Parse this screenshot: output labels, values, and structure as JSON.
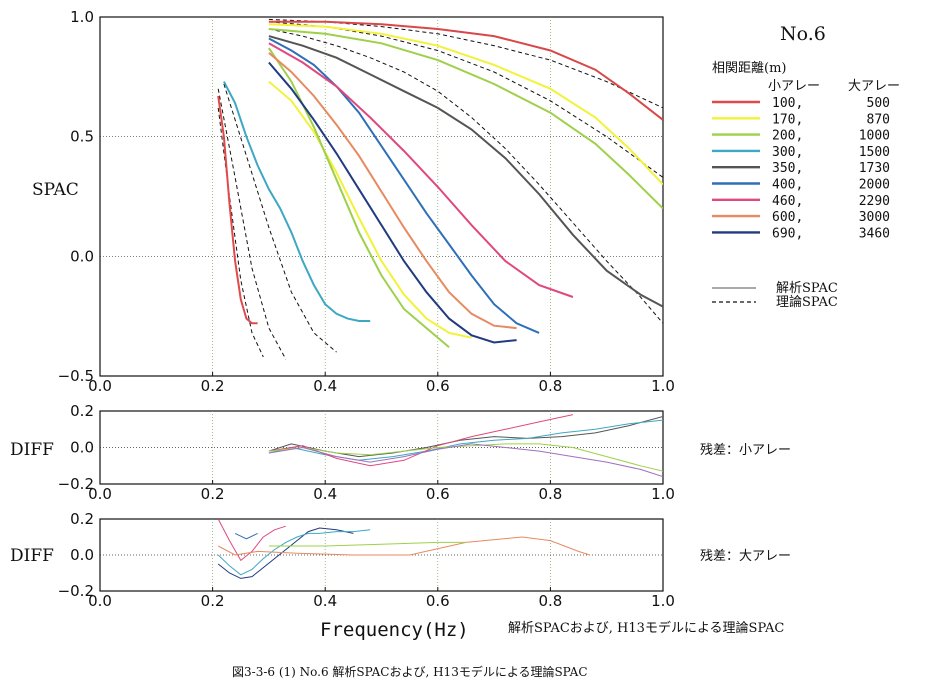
{
  "panel_title": "No.6",
  "main_caption": "解析SPACおよび, H13モデルによる理論SPAC",
  "figure_caption": "図3-3-6 (1) No.6 解析SPACおよび, H13モデルによる理論SPAC",
  "legend": {
    "title": "相関距離(m)",
    "small_header": "小アレー",
    "large_header": "大アレー",
    "entries": [
      {
        "small": "100,",
        "large": "500",
        "color": "#e04a4a"
      },
      {
        "small": "170,",
        "large": "870",
        "color": "#f2f23a"
      },
      {
        "small": "200,",
        "large": "1000",
        "color": "#9fd04a"
      },
      {
        "small": "300,",
        "large": "1500",
        "color": "#3ea7c4"
      },
      {
        "small": "350,",
        "large": "1730",
        "color": "#555555"
      },
      {
        "small": "400,",
        "large": "2000",
        "color": "#2e6fb8"
      },
      {
        "small": "460,",
        "large": "2290",
        "color": "#e0487f"
      },
      {
        "small": "600,",
        "large": "3000",
        "color": "#e88a60"
      },
      {
        "small": "690,",
        "large": "3460",
        "color": "#223a80"
      }
    ],
    "line_analysis": "解析SPAC",
    "line_theory": "理論SPAC"
  },
  "diff_small_label": "残差：小アレー",
  "diff_large_label": "残差：大アレー",
  "chart_data": [
    {
      "type": "line",
      "ylabel": "SPAC",
      "xlabel": "",
      "xlim": [
        0.0,
        1.0
      ],
      "ylim": [
        -0.5,
        1.0
      ],
      "xticks": [
        "0.0",
        "0.2",
        "0.4",
        "0.6",
        "0.8",
        "1.0"
      ],
      "yticks": [
        "1.0",
        "0.5",
        "0.0",
        "−0.5"
      ],
      "grid": true,
      "series": [
        {
          "name": "100",
          "color": "#e04a4a",
          "x": [
            0.21,
            0.22,
            0.23,
            0.24,
            0.25,
            0.26,
            0.27,
            0.28
          ],
          "y": [
            0.67,
            0.5,
            0.22,
            -0.02,
            -0.18,
            -0.26,
            -0.28,
            -0.28
          ]
        },
        {
          "name": "170",
          "color": "#f2f23a",
          "x": [
            0.3,
            0.34,
            0.38,
            0.42,
            0.46,
            0.5,
            0.54,
            0.58,
            0.62,
            0.66
          ],
          "y": [
            0.73,
            0.65,
            0.52,
            0.35,
            0.16,
            -0.02,
            -0.16,
            -0.26,
            -0.32,
            -0.34
          ]
        },
        {
          "name": "200",
          "color": "#9fd04a",
          "x": [
            0.3,
            0.34,
            0.38,
            0.42,
            0.46,
            0.5,
            0.54,
            0.58,
            0.62
          ],
          "y": [
            0.87,
            0.73,
            0.54,
            0.32,
            0.1,
            -0.08,
            -0.22,
            -0.3,
            -0.38
          ]
        },
        {
          "name": "300",
          "color": "#3ea7c4",
          "x": [
            0.22,
            0.24,
            0.26,
            0.28,
            0.3,
            0.32,
            0.34,
            0.36,
            0.38,
            0.4,
            0.42,
            0.44,
            0.46,
            0.48
          ],
          "y": [
            0.73,
            0.64,
            0.5,
            0.38,
            0.28,
            0.2,
            0.1,
            -0.02,
            -0.12,
            -0.2,
            -0.24,
            -0.26,
            -0.27,
            -0.27
          ]
        },
        {
          "name": "350",
          "color": "#555555",
          "x": [
            0.3,
            0.36,
            0.42,
            0.48,
            0.54,
            0.6,
            0.66,
            0.72,
            0.78,
            0.84,
            0.9,
            0.96,
            1.0
          ],
          "y": [
            0.92,
            0.88,
            0.83,
            0.76,
            0.69,
            0.62,
            0.53,
            0.41,
            0.26,
            0.09,
            -0.06,
            -0.16,
            -0.21
          ]
        },
        {
          "name": "400",
          "color": "#2e6fb8",
          "x": [
            0.3,
            0.34,
            0.38,
            0.42,
            0.46,
            0.5,
            0.54,
            0.58,
            0.62,
            0.66,
            0.7,
            0.74,
            0.78
          ],
          "y": [
            0.91,
            0.86,
            0.8,
            0.71,
            0.6,
            0.46,
            0.32,
            0.18,
            0.05,
            -0.08,
            -0.2,
            -0.28,
            -0.32
          ]
        },
        {
          "name": "460",
          "color": "#e0487f",
          "x": [
            0.3,
            0.36,
            0.42,
            0.48,
            0.54,
            0.6,
            0.66,
            0.72,
            0.78,
            0.84
          ],
          "y": [
            0.89,
            0.81,
            0.71,
            0.58,
            0.44,
            0.29,
            0.13,
            -0.02,
            -0.12,
            -0.17
          ]
        },
        {
          "name": "600",
          "color": "#e88a60",
          "x": [
            0.3,
            0.34,
            0.38,
            0.42,
            0.46,
            0.5,
            0.54,
            0.58,
            0.62,
            0.66,
            0.7,
            0.74
          ],
          "y": [
            0.85,
            0.77,
            0.67,
            0.55,
            0.42,
            0.27,
            0.12,
            -0.02,
            -0.15,
            -0.24,
            -0.29,
            -0.3
          ]
        },
        {
          "name": "690",
          "color": "#223a80",
          "x": [
            0.3,
            0.34,
            0.38,
            0.42,
            0.46,
            0.5,
            0.54,
            0.58,
            0.62,
            0.66,
            0.7,
            0.74
          ],
          "y": [
            0.81,
            0.7,
            0.57,
            0.43,
            0.28,
            0.13,
            -0.02,
            -0.15,
            -0.26,
            -0.33,
            -0.36,
            -0.35
          ]
        },
        {
          "name": "100-large",
          "color": "#d84848",
          "x": [
            0.3,
            0.4,
            0.5,
            0.6,
            0.7,
            0.8,
            0.88,
            0.94,
            1.0
          ],
          "y": [
            0.98,
            0.98,
            0.97,
            0.95,
            0.92,
            0.86,
            0.78,
            0.68,
            0.57
          ]
        },
        {
          "name": "170-large",
          "color": "#f2f23a",
          "x": [
            0.3,
            0.4,
            0.5,
            0.6,
            0.7,
            0.8,
            0.88,
            0.94,
            1.0
          ],
          "y": [
            0.97,
            0.96,
            0.93,
            0.88,
            0.8,
            0.7,
            0.58,
            0.45,
            0.3
          ]
        },
        {
          "name": "200-large",
          "color": "#9fd04a",
          "x": [
            0.3,
            0.4,
            0.5,
            0.6,
            0.7,
            0.8,
            0.88,
            0.94,
            1.0
          ],
          "y": [
            0.95,
            0.93,
            0.89,
            0.82,
            0.72,
            0.6,
            0.47,
            0.34,
            0.2
          ]
        }
      ],
      "theory_series": [
        {
          "x": [
            0.21,
            0.23,
            0.25,
            0.27,
            0.29
          ],
          "y": [
            0.62,
            0.25,
            -0.1,
            -0.32,
            -0.42
          ]
        },
        {
          "x": [
            0.21,
            0.24,
            0.27,
            0.3,
            0.33
          ],
          "y": [
            0.7,
            0.33,
            -0.05,
            -0.3,
            -0.43
          ]
        },
        {
          "x": [
            0.22,
            0.26,
            0.3,
            0.34,
            0.38,
            0.42
          ],
          "y": [
            0.72,
            0.42,
            0.12,
            -0.15,
            -0.32,
            -0.4
          ]
        },
        {
          "x": [
            0.3,
            0.36,
            0.42,
            0.48,
            0.54,
            0.6,
            0.66,
            0.72,
            0.78,
            0.84,
            0.9,
            0.96,
            1.0
          ],
          "y": [
            0.95,
            0.92,
            0.88,
            0.83,
            0.77,
            0.69,
            0.58,
            0.45,
            0.3,
            0.14,
            -0.02,
            -0.17,
            -0.28
          ]
        },
        {
          "x": [
            0.3,
            0.4,
            0.5,
            0.6,
            0.7,
            0.8,
            0.9,
            1.0
          ],
          "y": [
            0.99,
            0.98,
            0.96,
            0.93,
            0.88,
            0.82,
            0.73,
            0.62
          ]
        },
        {
          "x": [
            0.3,
            0.4,
            0.5,
            0.6,
            0.7,
            0.8,
            0.9,
            1.0
          ],
          "y": [
            0.98,
            0.96,
            0.92,
            0.86,
            0.77,
            0.65,
            0.5,
            0.33
          ]
        }
      ]
    },
    {
      "type": "line",
      "ylabel": "DIFF",
      "xlim": [
        0.0,
        1.0
      ],
      "ylim": [
        -0.2,
        0.2
      ],
      "xticks": [
        "0.0",
        "0.2",
        "0.4",
        "0.6",
        "0.8",
        "1.0"
      ],
      "yticks": [
        "0.2",
        "0.0",
        "−0.2"
      ],
      "grid": true,
      "series": [
        {
          "color": "#555555",
          "x": [
            0.3,
            0.34,
            0.4,
            0.46,
            0.52,
            0.58,
            0.64,
            0.7,
            0.76,
            0.82,
            0.88,
            0.94,
            1.0
          ],
          "y": [
            -0.02,
            0.02,
            -0.02,
            -0.05,
            -0.03,
            0.0,
            0.04,
            0.06,
            0.05,
            0.06,
            0.08,
            0.12,
            0.17
          ]
        },
        {
          "color": "#3ea7c4",
          "x": [
            0.3,
            0.34,
            0.4,
            0.46,
            0.52,
            0.58,
            0.64,
            0.7,
            0.76,
            0.82,
            0.88,
            0.94,
            1.0
          ],
          "y": [
            -0.03,
            0.0,
            -0.04,
            -0.07,
            -0.05,
            -0.02,
            0.02,
            0.04,
            0.05,
            0.08,
            0.1,
            0.13,
            0.15
          ]
        },
        {
          "color": "#e0487f",
          "x": [
            0.3,
            0.36,
            0.42,
            0.48,
            0.54,
            0.6,
            0.66,
            0.72,
            0.78,
            0.84
          ],
          "y": [
            -0.02,
            0.01,
            -0.06,
            -0.1,
            -0.07,
            0.01,
            0.06,
            0.1,
            0.14,
            0.18
          ]
        },
        {
          "color": "#9fd04a",
          "x": [
            0.3,
            0.36,
            0.42,
            0.48,
            0.54,
            0.6,
            0.66,
            0.72,
            0.78,
            0.84,
            0.9,
            0.96,
            1.0
          ],
          "y": [
            -0.02,
            0.0,
            -0.03,
            -0.04,
            -0.02,
            0.0,
            0.01,
            0.02,
            0.02,
            0.0,
            -0.05,
            -0.1,
            -0.13
          ]
        },
        {
          "color": "#a070c0",
          "x": [
            0.3,
            0.36,
            0.42,
            0.48,
            0.54,
            0.6,
            0.66,
            0.72,
            0.78,
            0.84,
            0.9,
            0.96,
            1.0
          ],
          "y": [
            -0.03,
            0.0,
            -0.05,
            -0.08,
            -0.05,
            -0.01,
            0.02,
            0.0,
            -0.02,
            -0.05,
            -0.08,
            -0.12,
            -0.16
          ]
        }
      ]
    },
    {
      "type": "line",
      "ylabel": "DIFF",
      "xlabel": "Frequency(Hz)",
      "xlim": [
        0.0,
        1.0
      ],
      "ylim": [
        -0.2,
        0.2
      ],
      "xticks": [
        "0.0",
        "0.2",
        "0.4",
        "0.6",
        "0.8",
        "1.0"
      ],
      "yticks": [
        "0.2",
        "0.0",
        "−0.2"
      ],
      "grid": true,
      "series": [
        {
          "color": "#223a80",
          "x": [
            0.21,
            0.23,
            0.25,
            0.27,
            0.29,
            0.31,
            0.33,
            0.35,
            0.37,
            0.39,
            0.42,
            0.45
          ],
          "y": [
            -0.05,
            -0.1,
            -0.13,
            -0.12,
            -0.07,
            -0.02,
            0.03,
            0.08,
            0.13,
            0.15,
            0.14,
            0.12
          ]
        },
        {
          "color": "#3ea7c4",
          "x": [
            0.21,
            0.23,
            0.25,
            0.27,
            0.29,
            0.31,
            0.33,
            0.35,
            0.37,
            0.39,
            0.42,
            0.45,
            0.48
          ],
          "y": [
            0.0,
            -0.06,
            -0.11,
            -0.08,
            -0.02,
            0.03,
            0.07,
            0.1,
            0.12,
            0.12,
            0.13,
            0.13,
            0.14
          ]
        },
        {
          "color": "#e0487f",
          "x": [
            0.21,
            0.23,
            0.25,
            0.27,
            0.29,
            0.31,
            0.33
          ],
          "y": [
            0.2,
            0.08,
            -0.03,
            0.02,
            0.1,
            0.14,
            0.16
          ]
        },
        {
          "color": "#e88a60",
          "x": [
            0.21,
            0.24,
            0.28,
            0.35,
            0.45,
            0.55,
            0.65,
            0.75,
            0.8,
            0.85,
            0.87
          ],
          "y": [
            0.05,
            0.0,
            0.02,
            0.01,
            0.0,
            0.0,
            0.07,
            0.1,
            0.08,
            0.02,
            0.0
          ]
        },
        {
          "color": "#9fd04a",
          "x": [
            0.3,
            0.4,
            0.5,
            0.6,
            0.65
          ],
          "y": [
            0.05,
            0.05,
            0.06,
            0.07,
            0.07
          ]
        },
        {
          "color": "#2e6fb8",
          "x": [
            0.24,
            0.26,
            0.28
          ],
          "y": [
            0.12,
            0.09,
            0.12
          ]
        }
      ]
    }
  ]
}
